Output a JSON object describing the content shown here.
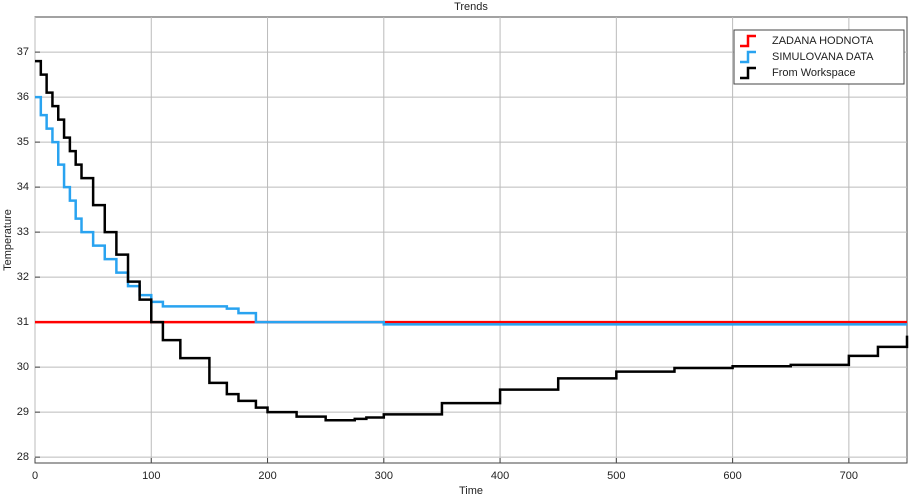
{
  "chart_data": {
    "type": "step",
    "title": "Trends",
    "xlabel": "Time",
    "ylabel": "Temperature",
    "x": [
      0,
      5,
      10,
      15,
      20,
      25,
      30,
      35,
      40,
      50,
      60,
      70,
      80,
      90,
      100,
      110,
      125,
      150,
      165,
      175,
      190,
      200,
      225,
      250,
      275,
      285,
      300,
      350,
      400,
      450,
      500,
      550,
      600,
      650,
      700,
      725,
      750
    ],
    "series": [
      {
        "name": "ZADANA HODNOTA",
        "color": "#ff0000",
        "values": [
          31,
          31,
          31,
          31,
          31,
          31,
          31,
          31,
          31,
          31,
          31,
          31,
          31,
          31,
          31,
          31,
          31,
          31,
          31,
          31,
          31,
          31,
          31,
          31,
          31,
          31,
          31,
          31,
          31,
          31,
          31,
          31,
          31,
          31,
          31,
          31,
          31
        ]
      },
      {
        "name": "SIMULOVANA DATA",
        "color": "#29a3f0",
        "values": [
          36,
          35.6,
          35.3,
          35,
          34.5,
          34,
          33.7,
          33.3,
          33,
          32.7,
          32.4,
          32.1,
          31.8,
          31.6,
          31.45,
          31.35,
          31.35,
          31.35,
          31.3,
          31.2,
          31,
          31,
          31,
          31,
          31,
          31,
          30.95,
          30.95,
          30.95,
          30.95,
          30.95,
          30.95,
          30.95,
          30.95,
          30.95,
          30.95,
          30.95
        ]
      },
      {
        "name": "From Workspace",
        "color": "#000000",
        "values": [
          36.8,
          36.5,
          36.1,
          35.8,
          35.5,
          35.1,
          34.8,
          34.5,
          34.2,
          33.6,
          33,
          32.5,
          31.9,
          31.5,
          31,
          30.6,
          30.2,
          29.65,
          29.4,
          29.25,
          29.1,
          29,
          28.9,
          28.82,
          28.85,
          28.88,
          28.95,
          29.2,
          29.5,
          29.75,
          29.9,
          29.98,
          30.02,
          30.05,
          30.25,
          30.45,
          30.7
        ]
      }
    ],
    "xlim": [
      0,
      750
    ],
    "ylim": [
      27.87,
      37.78
    ],
    "xticks": [
      0,
      100,
      200,
      300,
      400,
      500,
      600,
      700
    ],
    "yticks": [
      28,
      29,
      30,
      31,
      32,
      33,
      34,
      35,
      36,
      37
    ],
    "grid": true,
    "legend": "upper right"
  }
}
